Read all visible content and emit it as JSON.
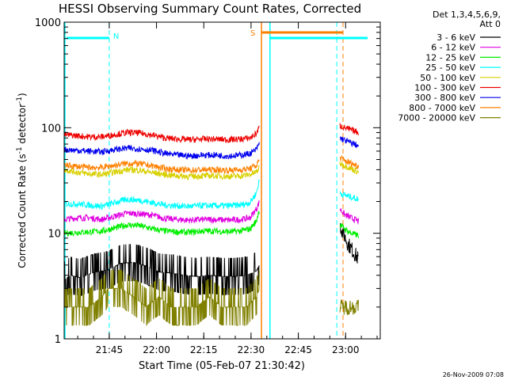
{
  "chart_data": {
    "type": "line",
    "title": "HESSI Observing Summary Count Rates, Corrected",
    "xlabel": "Start Time (05-Feb-07 21:30:42)",
    "ylabel_main": "Corrected Count Rate (s",
    "ylabel_sup1": "-1",
    "ylabel_mid": " detector",
    "ylabel_sup2": "-1",
    "ylabel_end": ")",
    "y_scale": "log",
    "ylim": [
      1,
      1000
    ],
    "xlim": [
      "21:30:42",
      "23:11:00"
    ],
    "x_ticks": [
      "21:45",
      "22:00",
      "22:15",
      "22:30",
      "22:45",
      "23:00"
    ],
    "y_ticks": [
      "1",
      "10",
      "100",
      "1000"
    ],
    "legend_title": "Det 1,3,4,5,6,9,",
    "legend_subtitle": "Att 0",
    "legend_position": "right",
    "timestamp": "26-Nov-2009 07:08",
    "series": [
      {
        "name": "3 - 6 keV",
        "color": "#000000",
        "values": [
          [
            0,
            3.6
          ],
          [
            2,
            4.0
          ],
          [
            5,
            3.8
          ],
          [
            10,
            4.3
          ],
          [
            14,
            4.5
          ],
          [
            18,
            5.2
          ],
          [
            22,
            5.3
          ],
          [
            26,
            4.9
          ],
          [
            30,
            4.3
          ],
          [
            34,
            4.2
          ],
          [
            38,
            4.0
          ],
          [
            42,
            3.9
          ],
          [
            46,
            4.0
          ],
          [
            50,
            3.9
          ],
          [
            54,
            3.9
          ],
          [
            58,
            4.0
          ],
          [
            61,
            4.4
          ],
          [
            62,
            5.0
          ],
          [
            87.5,
            12
          ],
          [
            88.5,
            10
          ],
          [
            90,
            8
          ],
          [
            92,
            6.5
          ],
          [
            93.5,
            5.6
          ]
        ]
      },
      {
        "name": "6 - 12 keV",
        "color": "#e000e0",
        "values": [
          [
            0,
            13.5
          ],
          [
            4,
            14
          ],
          [
            8,
            14
          ],
          [
            12,
            13.5
          ],
          [
            16,
            14.5
          ],
          [
            20,
            15.5
          ],
          [
            24,
            15.3
          ],
          [
            28,
            14.8
          ],
          [
            32,
            13.8
          ],
          [
            36,
            13.5
          ],
          [
            40,
            13.3
          ],
          [
            44,
            13.5
          ],
          [
            48,
            13.5
          ],
          [
            52,
            13.3
          ],
          [
            56,
            13.5
          ],
          [
            59,
            14
          ],
          [
            61,
            17
          ],
          [
            62,
            20
          ],
          [
            87.5,
            17
          ],
          [
            89,
            15
          ],
          [
            91,
            14
          ],
          [
            93.5,
            13
          ]
        ]
      },
      {
        "name": "12 - 25 keV",
        "color": "#00ee00",
        "values": [
          [
            0,
            10
          ],
          [
            4,
            10.2
          ],
          [
            8,
            10.3
          ],
          [
            12,
            10.5
          ],
          [
            16,
            11.2
          ],
          [
            20,
            12
          ],
          [
            24,
            11.8
          ],
          [
            28,
            11
          ],
          [
            32,
            10.5
          ],
          [
            36,
            10.3
          ],
          [
            40,
            10.2
          ],
          [
            44,
            10.5
          ],
          [
            48,
            10.5
          ],
          [
            52,
            10.3
          ],
          [
            56,
            10.5
          ],
          [
            59,
            11
          ],
          [
            61,
            13
          ],
          [
            62,
            17
          ],
          [
            87.5,
            12
          ],
          [
            89,
            11
          ],
          [
            91,
            10
          ],
          [
            93.5,
            9.5
          ]
        ]
      },
      {
        "name": "25 - 50 keV",
        "color": "#00ffff",
        "values": [
          [
            0,
            19
          ],
          [
            4,
            19
          ],
          [
            8,
            18.5
          ],
          [
            12,
            18
          ],
          [
            16,
            19.5
          ],
          [
            20,
            21
          ],
          [
            24,
            20.5
          ],
          [
            28,
            19.5
          ],
          [
            32,
            18.5
          ],
          [
            36,
            18.2
          ],
          [
            40,
            18
          ],
          [
            44,
            18.3
          ],
          [
            48,
            18.2
          ],
          [
            52,
            18.2
          ],
          [
            56,
            18.5
          ],
          [
            59,
            19.5
          ],
          [
            61,
            24
          ],
          [
            62,
            32
          ],
          [
            87.5,
            24
          ],
          [
            89,
            23
          ],
          [
            91,
            22
          ],
          [
            93.5,
            21
          ]
        ]
      },
      {
        "name": "50 - 100 keV",
        "color": "#d8d000",
        "values": [
          [
            0,
            40
          ],
          [
            4,
            38
          ],
          [
            8,
            36.5
          ],
          [
            12,
            36
          ],
          [
            16,
            38
          ],
          [
            20,
            40
          ],
          [
            24,
            39.5
          ],
          [
            28,
            37.5
          ],
          [
            32,
            36
          ],
          [
            36,
            35
          ],
          [
            40,
            34.5
          ],
          [
            44,
            35
          ],
          [
            48,
            35
          ],
          [
            52,
            34.5
          ],
          [
            56,
            35
          ],
          [
            59,
            36
          ],
          [
            61,
            38
          ],
          [
            62,
            42
          ],
          [
            87.5,
            46
          ],
          [
            89,
            44
          ],
          [
            91,
            41
          ],
          [
            93.5,
            38
          ]
        ]
      },
      {
        "name": "100 - 300 keV",
        "color": "#ee0000",
        "values": [
          [
            0,
            86
          ],
          [
            4,
            84
          ],
          [
            8,
            82
          ],
          [
            12,
            82
          ],
          [
            16,
            86
          ],
          [
            20,
            90
          ],
          [
            24,
            89
          ],
          [
            28,
            85
          ],
          [
            32,
            80
          ],
          [
            36,
            78
          ],
          [
            40,
            77
          ],
          [
            44,
            78
          ],
          [
            48,
            78
          ],
          [
            52,
            77
          ],
          [
            56,
            78
          ],
          [
            59,
            80
          ],
          [
            61,
            88
          ],
          [
            62,
            102
          ],
          [
            87.5,
            105
          ],
          [
            89,
            100
          ],
          [
            91,
            95
          ],
          [
            93.5,
            90
          ]
        ]
      },
      {
        "name": "300 - 800 keV",
        "color": "#0000ee",
        "values": [
          [
            0,
            62
          ],
          [
            4,
            61
          ],
          [
            8,
            60
          ],
          [
            12,
            59
          ],
          [
            16,
            62
          ],
          [
            20,
            64
          ],
          [
            24,
            63
          ],
          [
            28,
            61
          ],
          [
            32,
            57
          ],
          [
            36,
            55
          ],
          [
            40,
            54
          ],
          [
            44,
            55
          ],
          [
            48,
            55
          ],
          [
            52,
            54
          ],
          [
            56,
            55
          ],
          [
            59,
            57
          ],
          [
            61,
            62
          ],
          [
            62,
            72
          ],
          [
            87.5,
            80
          ],
          [
            89,
            76
          ],
          [
            91,
            72
          ],
          [
            93.5,
            67
          ]
        ]
      },
      {
        "name": "800 - 7000 keV",
        "color": "#ff8000",
        "values": [
          [
            0,
            44
          ],
          [
            4,
            43
          ],
          [
            8,
            42
          ],
          [
            12,
            42
          ],
          [
            16,
            44
          ],
          [
            20,
            46
          ],
          [
            24,
            45.5
          ],
          [
            28,
            43.5
          ],
          [
            32,
            41
          ],
          [
            36,
            40
          ],
          [
            40,
            39.5
          ],
          [
            44,
            40
          ],
          [
            48,
            40
          ],
          [
            52,
            39.5
          ],
          [
            56,
            40
          ],
          [
            59,
            41
          ],
          [
            61,
            44
          ],
          [
            62,
            50
          ],
          [
            87.5,
            52
          ],
          [
            89,
            49
          ],
          [
            91,
            46
          ],
          [
            93.5,
            43
          ]
        ]
      },
      {
        "name": "7000 - 20000 keV",
        "color": "#808000",
        "values": [
          [
            0,
            2
          ],
          [
            4,
            2
          ],
          [
            8,
            2
          ],
          [
            12,
            2.5
          ],
          [
            14,
            3
          ],
          [
            18,
            3
          ],
          [
            22,
            2.5
          ],
          [
            26,
            2
          ],
          [
            30,
            2.5
          ],
          [
            34,
            2
          ],
          [
            38,
            2
          ],
          [
            42,
            2
          ],
          [
            46,
            2.5
          ],
          [
            50,
            2
          ],
          [
            54,
            2
          ],
          [
            58,
            2
          ],
          [
            61,
            2.5
          ],
          [
            62,
            3
          ],
          [
            87.5,
            2
          ],
          [
            90,
            2
          ],
          [
            93.5,
            2
          ]
        ]
      }
    ],
    "flags": [
      {
        "label": "N",
        "color": "#00ffff"
      },
      {
        "label": "S",
        "color": "#ff8000"
      }
    ]
  }
}
